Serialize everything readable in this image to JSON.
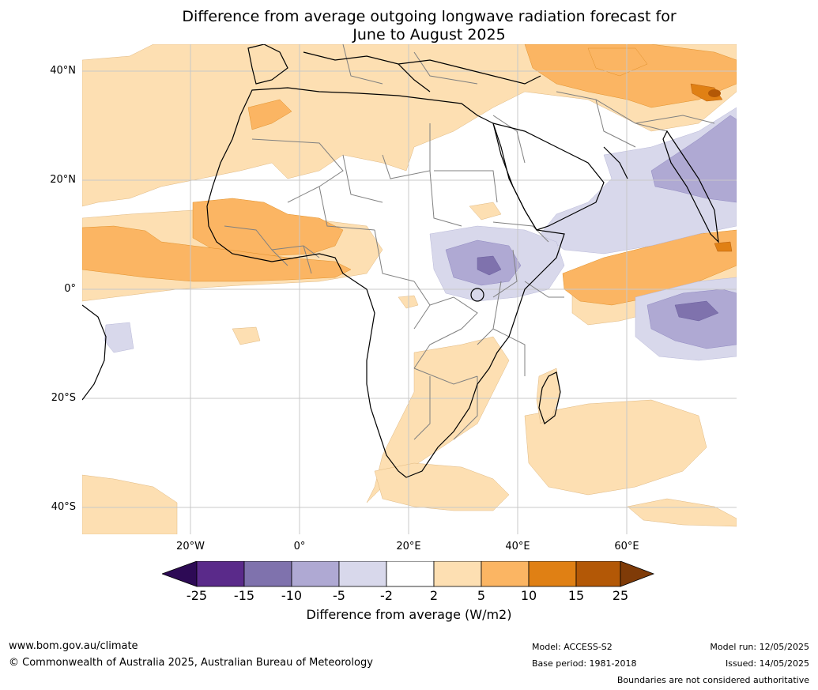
{
  "title_line1": "Difference from average outgoing longwave radiation forecast for",
  "title_line2": "June to August 2025",
  "lat_labels": [
    "40°N",
    "20°N",
    "0°",
    "20°S",
    "40°S"
  ],
  "lon_labels": [
    "20°W",
    "0°",
    "20°E",
    "40°E",
    "60°E"
  ],
  "colorbar": {
    "ticks": [
      "-25",
      "-15",
      "-10",
      "-5",
      "-2",
      "2",
      "5",
      "10",
      "15",
      "25"
    ],
    "colors": [
      "#2d0a55",
      "#5a2a8a",
      "#7f72ad",
      "#afa9d3",
      "#d8d8eb",
      "#ffffff",
      "#fddfb2",
      "#fbb563",
      "#e08014",
      "#b35806",
      "#7f3b08"
    ],
    "label": "Difference from average (W/m2)"
  },
  "footer": {
    "website": "www.bom.gov.au/climate",
    "copyright": "© Commonwealth of Australia 2025, Australian Bureau of Meteorology",
    "model": "Model: ACCESS-S2",
    "base_period": "Base period: 1981-2018",
    "model_run": "Model run: 12/05/2025",
    "issued": "Issued: 14/05/2025",
    "boundaries": "Boundaries are not considered authoritative"
  }
}
